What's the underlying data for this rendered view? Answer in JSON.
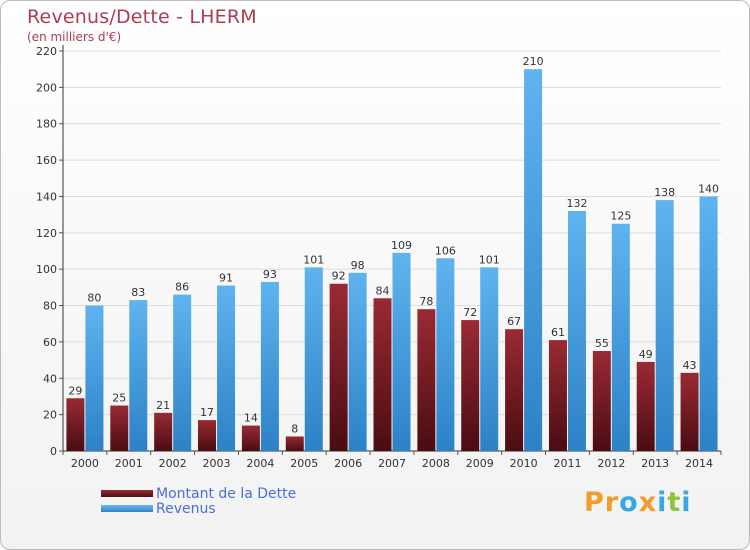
{
  "header": {
    "title": "Revenus/Dette - LHERM",
    "subtitle": "(en milliers d'€)"
  },
  "legend": {
    "items": [
      {
        "label": "Montant de la Dette",
        "color": "#7a1a24"
      },
      {
        "label": "Revenus",
        "color": "#4aa3e6"
      }
    ]
  },
  "logo": {
    "text": "Proxiti",
    "letters": [
      {
        "ch": "P",
        "color": "#f39c2a"
      },
      {
        "ch": "r",
        "color": "#f39c2a"
      },
      {
        "ch": "o",
        "color": "#3aa8e0"
      },
      {
        "ch": "x",
        "color": "#f39c2a"
      },
      {
        "ch": "i",
        "color": "#3aa8e0"
      },
      {
        "ch": "t",
        "color": "#8cc63f"
      },
      {
        "ch": "i",
        "color": "#3aa8e0"
      }
    ]
  },
  "chart_data": {
    "type": "bar",
    "title": "Revenus/Dette - LHERM",
    "subtitle": "(en milliers d'€)",
    "categories": [
      "2000",
      "2001",
      "2002",
      "2003",
      "2004",
      "2005",
      "2006",
      "2007",
      "2008",
      "2009",
      "2010",
      "2011",
      "2012",
      "2013",
      "2014"
    ],
    "series": [
      {
        "name": "Montant de la Dette",
        "color": "#7a1a24",
        "values": [
          29,
          25,
          21,
          17,
          14,
          8,
          92,
          84,
          78,
          72,
          67,
          61,
          55,
          49,
          43
        ]
      },
      {
        "name": "Revenus",
        "color": "#4aa3e6",
        "values": [
          80,
          83,
          86,
          91,
          93,
          101,
          98,
          109,
          106,
          101,
          210,
          132,
          125,
          138,
          140
        ]
      }
    ],
    "ylim": [
      0,
      220
    ],
    "yticks": [
      0,
      20,
      40,
      60,
      80,
      100,
      120,
      140,
      160,
      180,
      200,
      220
    ],
    "grid": true,
    "legend_position": "bottom-left"
  }
}
